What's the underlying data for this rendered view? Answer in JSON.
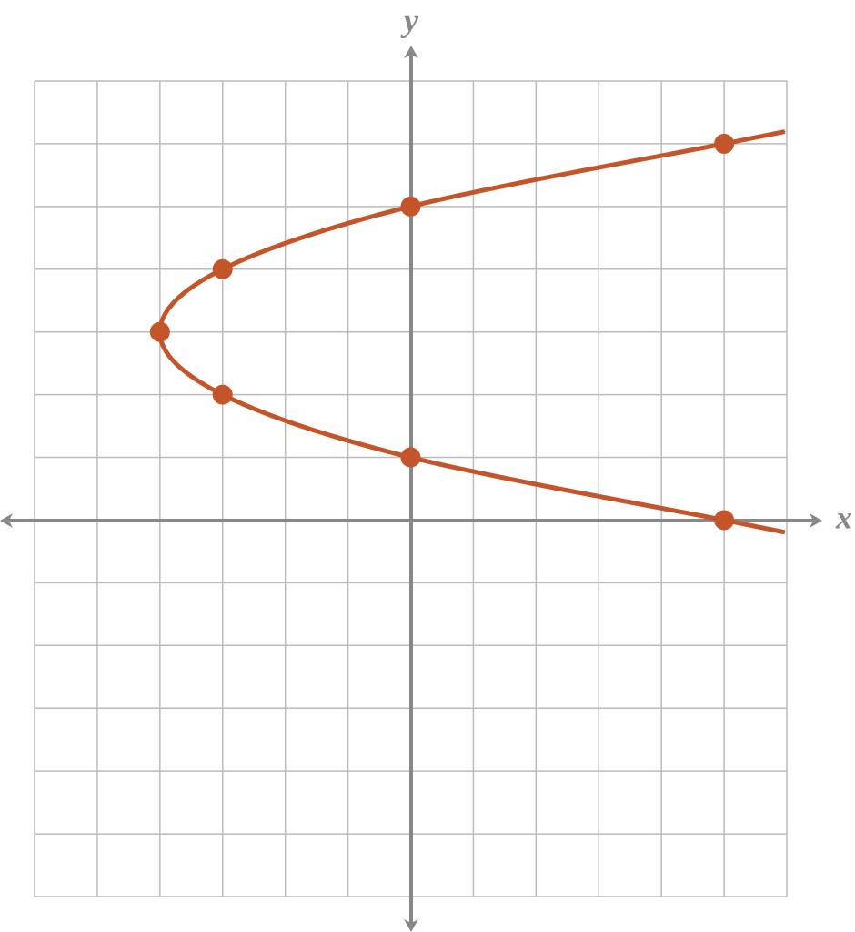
{
  "chart_data": {
    "type": "line",
    "x": [
      5,
      0,
      -3,
      -4,
      -3,
      0,
      5
    ],
    "y": [
      0,
      1,
      2,
      3,
      4,
      5,
      6
    ],
    "color": "#c4552a",
    "x_label": "x",
    "y_label": "y",
    "xlim": [
      -6,
      6
    ],
    "ylim": [
      -6,
      7
    ],
    "xticks": [
      -6,
      -5,
      -4,
      -3,
      -2,
      -1,
      0,
      1,
      2,
      3,
      4,
      5,
      6
    ],
    "yticks": [
      -6,
      -5,
      -4,
      -3,
      -2,
      -1,
      0,
      1,
      2,
      3,
      4,
      5,
      6,
      7
    ],
    "grid": true
  }
}
